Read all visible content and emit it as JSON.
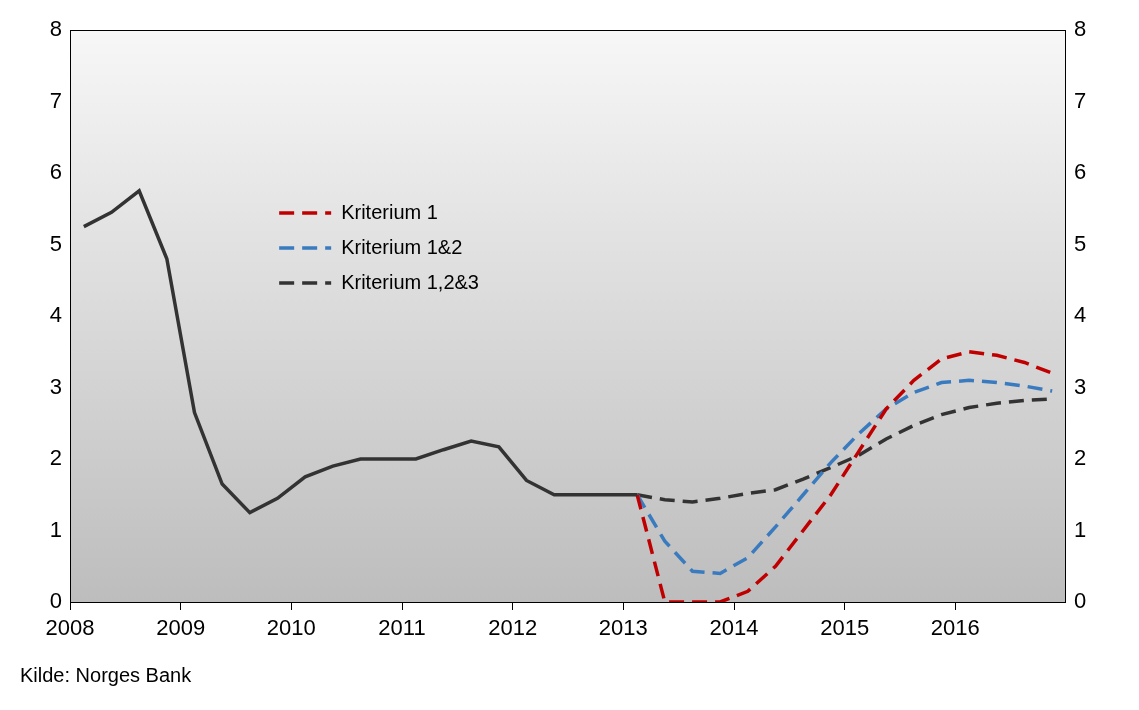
{
  "chart_data": {
    "type": "line",
    "source": "Kilde: Norges Bank",
    "x": [
      2008.125,
      2008.375,
      2008.625,
      2008.875,
      2009.125,
      2009.375,
      2009.625,
      2009.875,
      2010.125,
      2010.375,
      2010.625,
      2010.875,
      2011.125,
      2011.375,
      2011.625,
      2011.875,
      2012.125,
      2012.375,
      2012.625,
      2012.875,
      2013.125,
      2013.375,
      2013.625,
      2013.875,
      2014.125,
      2014.375,
      2014.625,
      2014.875,
      2015.125,
      2015.375,
      2015.625,
      2015.875,
      2016.125,
      2016.375,
      2016.625,
      2016.875
    ],
    "series": [
      {
        "color": "#333333",
        "line_style": "solid",
        "values": [
          5.25,
          5.45,
          5.75,
          4.8,
          2.65,
          1.65,
          1.25,
          1.45,
          1.75,
          1.9,
          2.0,
          2.0,
          2.0,
          2.13,
          2.25,
          2.17,
          1.7,
          1.5,
          1.5,
          1.5,
          1.5,
          null,
          null,
          null,
          null,
          null,
          null,
          null,
          null,
          null,
          null,
          null,
          null,
          null,
          null,
          null
        ]
      },
      {
        "name": "Kriterium 1",
        "color": "#c00000",
        "line_style": "dashed",
        "values": [
          null,
          null,
          null,
          null,
          null,
          null,
          null,
          null,
          null,
          null,
          null,
          null,
          null,
          null,
          null,
          null,
          null,
          null,
          null,
          null,
          1.5,
          0,
          0,
          0,
          0.15,
          0.5,
          1.0,
          1.5,
          2.1,
          2.7,
          3.1,
          3.4,
          3.5,
          3.45,
          3.35,
          3.2
        ]
      },
      {
        "name": "Kriterium 1&2",
        "color": "#3a7bbf",
        "line_style": "dashed",
        "values": [
          null,
          null,
          null,
          null,
          null,
          null,
          null,
          null,
          null,
          null,
          null,
          null,
          null,
          null,
          null,
          null,
          null,
          null,
          null,
          null,
          1.5,
          0.85,
          0.43,
          0.4,
          0.62,
          1.05,
          1.5,
          1.95,
          2.35,
          2.7,
          2.93,
          3.07,
          3.1,
          3.07,
          3.02,
          2.95
        ]
      },
      {
        "name": "Kriterium 1,2&3",
        "color": "#333333",
        "line_style": "dashed",
        "values": [
          null,
          null,
          null,
          null,
          null,
          null,
          null,
          null,
          null,
          null,
          null,
          null,
          null,
          null,
          null,
          null,
          null,
          null,
          null,
          null,
          1.5,
          1.43,
          1.4,
          1.45,
          1.52,
          1.57,
          1.72,
          1.88,
          2.05,
          2.28,
          2.47,
          2.62,
          2.72,
          2.78,
          2.82,
          2.84
        ]
      }
    ],
    "xlim": [
      2008,
      2017
    ],
    "xticks": [
      2008,
      2009,
      2010,
      2011,
      2012,
      2013,
      2014,
      2015,
      2016
    ],
    "ylim": [
      0,
      8
    ],
    "yticks": [
      0,
      1,
      2,
      3,
      4,
      5,
      6,
      7,
      8
    ],
    "y2lim": [
      0,
      8
    ],
    "y2ticks": [
      0,
      1,
      2,
      3,
      4,
      5,
      6,
      7,
      8
    ],
    "grid": false,
    "legend": "upper left"
  }
}
